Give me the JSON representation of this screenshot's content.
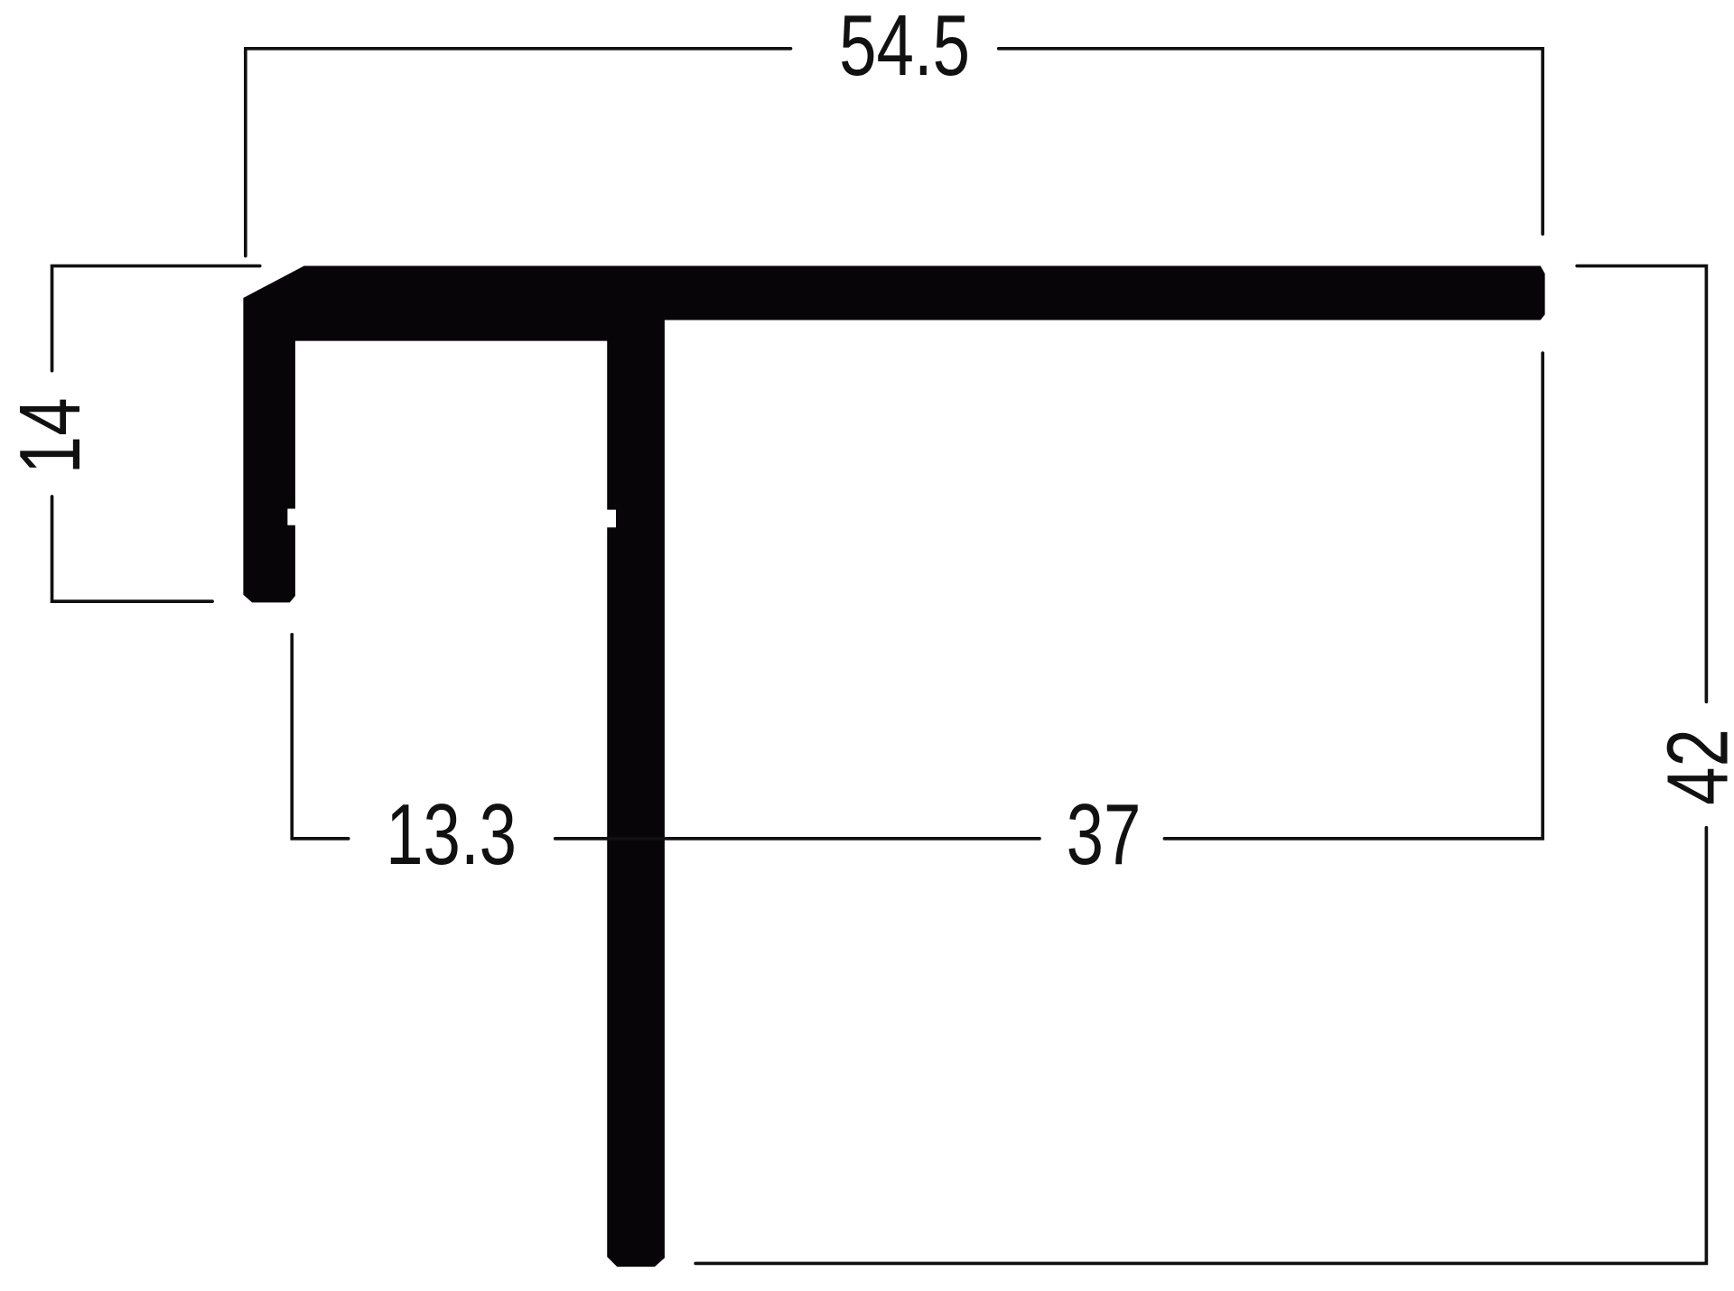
{
  "drawing": {
    "profile_color": "#070507",
    "line_color": "#111111",
    "dimensions": {
      "overall_width": "54.5",
      "flange_height": "14",
      "left_offset": "13.3",
      "right_span": "37",
      "overall_height": "42"
    }
  }
}
